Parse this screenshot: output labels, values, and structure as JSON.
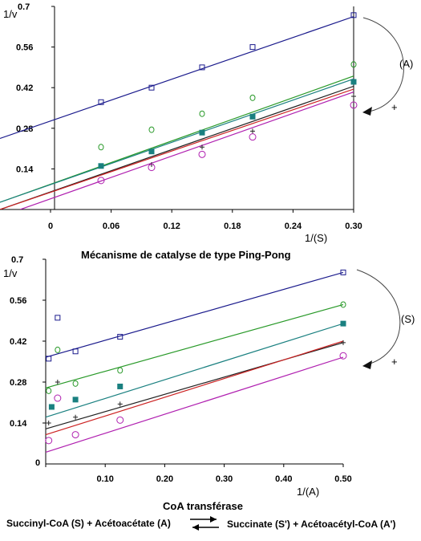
{
  "chart_data": [
    {
      "type": "scatter",
      "ylabel": "1/v",
      "xlabel": "1/(S)",
      "xticks": [
        "0",
        "0.06",
        "0.12",
        "0.18",
        "0.24",
        "0.30"
      ],
      "yticks": [
        "0.14",
        "0.28",
        "0.42",
        "0.56",
        "0.7"
      ],
      "xlim": [
        -0.05,
        0.3
      ],
      "ylim": [
        0,
        0.7
      ],
      "arrow_label": "(A)",
      "plus_label": "+",
      "series": [
        {
          "marker": "square-open",
          "color": "#1a1a8c",
          "points": [
            [
              0.05,
              0.37
            ],
            [
              0.1,
              0.42
            ],
            [
              0.15,
              0.49
            ],
            [
              0.2,
              0.56
            ],
            [
              0.3,
              0.67
            ]
          ],
          "line": [
            [
              -0.05,
              0.245
            ],
            [
              0.3,
              0.665
            ]
          ]
        },
        {
          "marker": "diamond-open",
          "color": "#2a9a2a",
          "points": [
            [
              0.05,
              0.215
            ],
            [
              0.1,
              0.275
            ],
            [
              0.15,
              0.33
            ],
            [
              0.2,
              0.385
            ],
            [
              0.3,
              0.5
            ]
          ],
          "line": [
            [
              -0.05,
              0.025
            ],
            [
              0.3,
              0.46
            ]
          ]
        },
        {
          "marker": "square-filled",
          "color": "#1a8080",
          "points": [
            [
              0.05,
              0.15
            ],
            [
              0.1,
              0.2
            ],
            [
              0.15,
              0.265
            ],
            [
              0.2,
              0.32
            ],
            [
              0.3,
              0.44
            ]
          ],
          "line": [
            [
              -0.05,
              0.025
            ],
            [
              0.3,
              0.45
            ]
          ]
        },
        {
          "marker": "plus",
          "color": "#222222",
          "points": [
            [
              0.1,
              0.155
            ],
            [
              0.15,
              0.215
            ],
            [
              0.2,
              0.27
            ],
            [
              0.3,
              0.39
            ]
          ],
          "line": [
            [
              -0.05,
              0.0
            ],
            [
              0.3,
              0.425
            ]
          ]
        },
        {
          "marker": "circle-open",
          "color": "#b020b0",
          "points": [
            [
              0.05,
              0.1
            ],
            [
              0.1,
              0.145
            ],
            [
              0.15,
              0.19
            ],
            [
              0.2,
              0.25
            ],
            [
              0.3,
              0.36
            ]
          ],
          "line": [
            [
              -0.03,
              0.0
            ],
            [
              0.3,
              0.405
            ]
          ]
        }
      ],
      "extra_lines": [
        {
          "color": "#cc2222",
          "line": [
            [
              -0.05,
              0.0
            ],
            [
              0.3,
              0.415
            ]
          ]
        }
      ]
    },
    {
      "type": "scatter",
      "title": "Mécanisme de catalyse de type Ping-Pong",
      "ylabel": "1/v",
      "xlabel": "1/(A)",
      "xticks": [
        "0",
        "0.10",
        "0.20",
        "0.30",
        "0.40",
        "0.50"
      ],
      "yticks": [
        "0.14",
        "0.28",
        "0.42",
        "0.56",
        "0.7"
      ],
      "xlim": [
        0,
        0.5
      ],
      "ylim": [
        0,
        0.7
      ],
      "arrow_label": "(S)",
      "plus_label": "+",
      "series": [
        {
          "marker": "square-open",
          "color": "#1a1a8c",
          "points": [
            [
              0.005,
              0.36
            ],
            [
              0.02,
              0.5
            ],
            [
              0.05,
              0.385
            ],
            [
              0.125,
              0.435
            ],
            [
              0.5,
              0.655
            ]
          ],
          "line": [
            [
              0.0,
              0.365
            ],
            [
              0.5,
              0.655
            ]
          ]
        },
        {
          "marker": "diamond-open",
          "color": "#2a9a2a",
          "points": [
            [
              0.005,
              0.25
            ],
            [
              0.02,
              0.39
            ],
            [
              0.05,
              0.275
            ],
            [
              0.125,
              0.32
            ],
            [
              0.5,
              0.545
            ]
          ],
          "line": [
            [
              0.0,
              0.26
            ],
            [
              0.5,
              0.545
            ]
          ]
        },
        {
          "marker": "square-filled",
          "color": "#1a8080",
          "points": [
            [
              0.01,
              0.195
            ],
            [
              0.05,
              0.22
            ],
            [
              0.125,
              0.265
            ],
            [
              0.5,
              0.48
            ]
          ],
          "line": [
            [
              0.0,
              0.16
            ],
            [
              0.5,
              0.48
            ]
          ]
        },
        {
          "marker": "plus",
          "color": "#222222",
          "points": [
            [
              0.005,
              0.14
            ],
            [
              0.02,
              0.28
            ],
            [
              0.05,
              0.16
            ],
            [
              0.125,
              0.205
            ],
            [
              0.5,
              0.415
            ]
          ],
          "line": [
            [
              0.0,
              0.12
            ],
            [
              0.5,
              0.415
            ]
          ]
        },
        {
          "marker": "circle-open",
          "color": "#b020b0",
          "points": [
            [
              0.005,
              0.08
            ],
            [
              0.02,
              0.225
            ],
            [
              0.05,
              0.1
            ],
            [
              0.125,
              0.15
            ],
            [
              0.5,
              0.37
            ]
          ],
          "line": [
            [
              0.0,
              0.04
            ],
            [
              0.5,
              0.365
            ]
          ]
        }
      ],
      "extra_lines": [
        {
          "color": "#cc2222",
          "line": [
            [
              0.0,
              0.1
            ],
            [
              0.5,
              0.42
            ]
          ]
        }
      ]
    }
  ],
  "footer": {
    "title": "CoA transférase",
    "left": "Succinyl-CoA (S) + Acétoacétate (A)",
    "right": "Succinate (S') + Acétoacétyl-CoA (A')"
  }
}
